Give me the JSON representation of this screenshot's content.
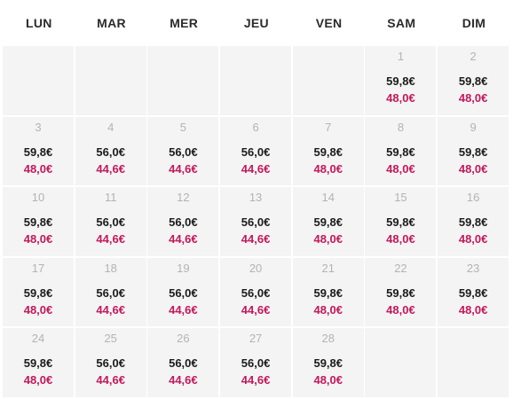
{
  "weekdays": [
    "LUN",
    "MAR",
    "MER",
    "JEU",
    "VEN",
    "SAM",
    "DIM"
  ],
  "weeks": [
    [
      null,
      null,
      null,
      null,
      null,
      {
        "day": "1",
        "price": "59,8€",
        "promo": "48,0€"
      },
      {
        "day": "2",
        "price": "59,8€",
        "promo": "48,0€"
      }
    ],
    [
      {
        "day": "3",
        "price": "59,8€",
        "promo": "48,0€"
      },
      {
        "day": "4",
        "price": "56,0€",
        "promo": "44,6€"
      },
      {
        "day": "5",
        "price": "56,0€",
        "promo": "44,6€"
      },
      {
        "day": "6",
        "price": "56,0€",
        "promo": "44,6€"
      },
      {
        "day": "7",
        "price": "59,8€",
        "promo": "48,0€"
      },
      {
        "day": "8",
        "price": "59,8€",
        "promo": "48,0€"
      },
      {
        "day": "9",
        "price": "59,8€",
        "promo": "48,0€"
      }
    ],
    [
      {
        "day": "10",
        "price": "59,8€",
        "promo": "48,0€"
      },
      {
        "day": "11",
        "price": "56,0€",
        "promo": "44,6€"
      },
      {
        "day": "12",
        "price": "56,0€",
        "promo": "44,6€"
      },
      {
        "day": "13",
        "price": "56,0€",
        "promo": "44,6€"
      },
      {
        "day": "14",
        "price": "59,8€",
        "promo": "48,0€"
      },
      {
        "day": "15",
        "price": "59,8€",
        "promo": "48,0€"
      },
      {
        "day": "16",
        "price": "59,8€",
        "promo": "48,0€"
      }
    ],
    [
      {
        "day": "17",
        "price": "59,8€",
        "promo": "48,0€"
      },
      {
        "day": "18",
        "price": "56,0€",
        "promo": "44,6€"
      },
      {
        "day": "19",
        "price": "56,0€",
        "promo": "44,6€"
      },
      {
        "day": "20",
        "price": "56,0€",
        "promo": "44,6€"
      },
      {
        "day": "21",
        "price": "59,8€",
        "promo": "48,0€"
      },
      {
        "day": "22",
        "price": "59,8€",
        "promo": "48,0€"
      },
      {
        "day": "23",
        "price": "59,8€",
        "promo": "48,0€"
      }
    ],
    [
      {
        "day": "24",
        "price": "59,8€",
        "promo": "48,0€"
      },
      {
        "day": "25",
        "price": "56,0€",
        "promo": "44,6€"
      },
      {
        "day": "26",
        "price": "56,0€",
        "promo": "44,6€"
      },
      {
        "day": "27",
        "price": "56,0€",
        "promo": "44,6€"
      },
      {
        "day": "28",
        "price": "59,8€",
        "promo": "48,0€"
      },
      null,
      null
    ]
  ],
  "colors": {
    "cell_bg": "#f4f4f4",
    "day_number": "#b3b3b3",
    "price": "#1b1b1b",
    "promo_price": "#c2185b"
  }
}
